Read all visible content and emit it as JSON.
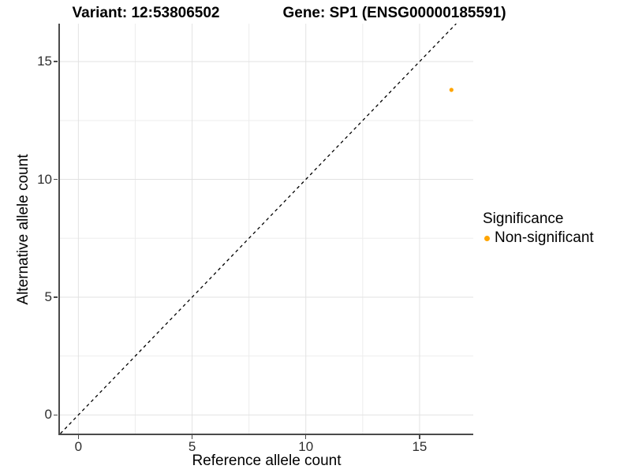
{
  "chart_data": {
    "type": "scatter",
    "titles": {
      "variant": "Variant: 12:53806502",
      "gene": "Gene: SP1 (ENSG00000185591)"
    },
    "xlabel": "Reference allele count",
    "ylabel": "Alternative allele count",
    "x_axis": {
      "min": -0.81,
      "max": 17.36,
      "major_ticks": [
        0,
        5,
        10,
        15
      ],
      "minor_ticks": [
        2.5,
        7.5,
        12.5
      ]
    },
    "y_axis": {
      "min": -0.79,
      "max": 16.61,
      "major_ticks": [
        0,
        5,
        10,
        15
      ],
      "minor_ticks": [
        2.5,
        7.5,
        12.5
      ]
    },
    "grid": {
      "enabled": true,
      "major_color": "#e2e2e2",
      "minor_color": "#ededed"
    },
    "identity_line": {
      "style": "dashed",
      "color": "#000000",
      "equation": "y = x"
    },
    "series": [
      {
        "name": "Non-significant",
        "color": "#FFA500",
        "points": [
          {
            "x": 16.4,
            "y": 13.8
          }
        ]
      }
    ],
    "legend": {
      "title": "Significance",
      "position": "right",
      "entries": [
        {
          "label": "Non-significant",
          "color": "#FFA500"
        }
      ]
    }
  }
}
